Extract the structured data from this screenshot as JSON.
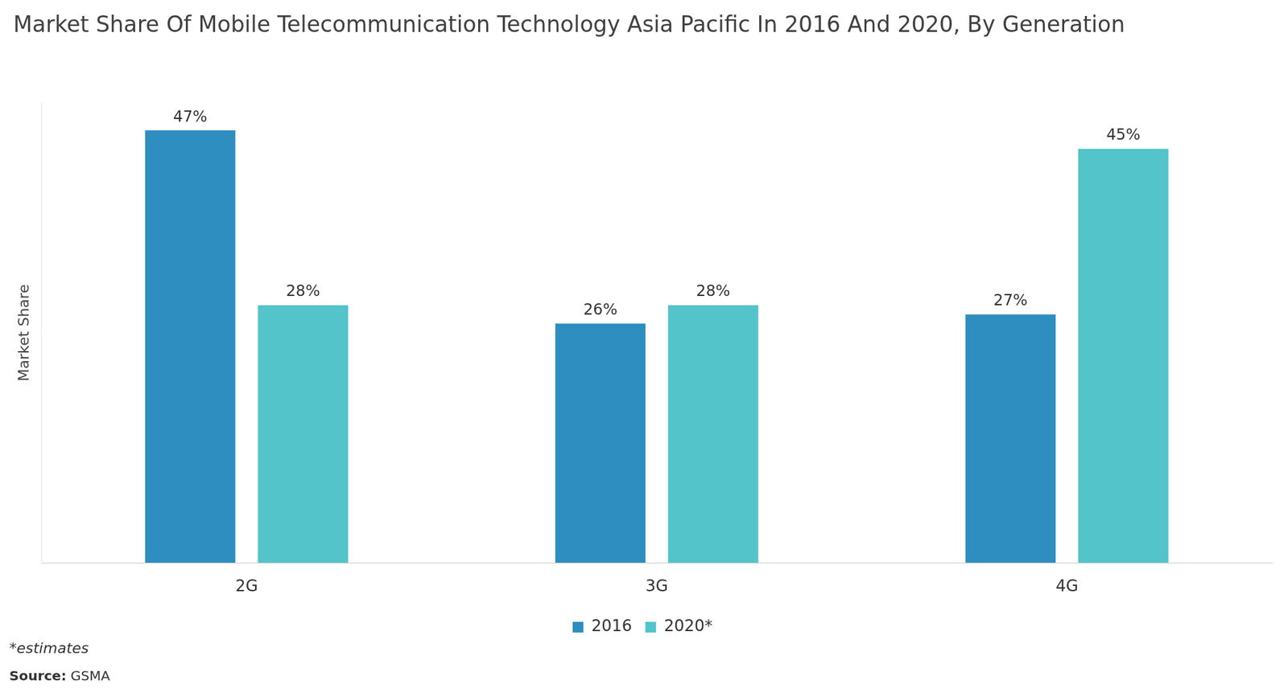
{
  "chart_data": {
    "type": "bar",
    "title": "Market Share Of Mobile Telecommunication Technology Asia Pacific In 2016 And 2020, By Generation",
    "y_label": "Market Share",
    "categories": [
      "2G",
      "3G",
      "4G"
    ],
    "series": [
      {
        "name": "2016",
        "color": "#2e8ec0",
        "values": [
          47,
          26,
          27
        ],
        "value_labels": [
          "47%",
          "26%",
          "27%"
        ]
      },
      {
        "name": "2020*",
        "color": "#52c4ca",
        "values": [
          28,
          28,
          45
        ],
        "value_labels": [
          "28%",
          "28%",
          "45%"
        ]
      }
    ],
    "ylim": [
      0,
      50
    ],
    "grid": false,
    "legend": "bottom",
    "data_labels": true,
    "tick_labels": "x",
    "note": "*estimates",
    "source_label": "Source:",
    "source": "GSMA"
  }
}
